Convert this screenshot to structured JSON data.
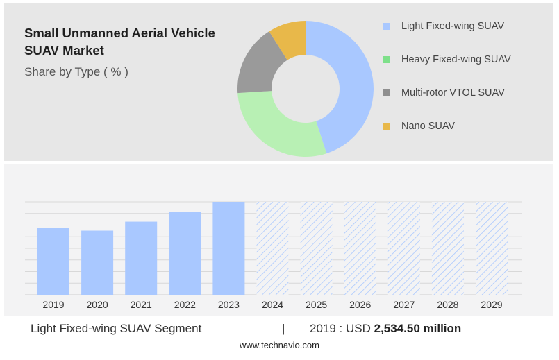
{
  "header": {
    "title": "Small Unmanned Aerial Vehicle SUAV Market",
    "subtitle": "Share by Type ( % )"
  },
  "colors": {
    "light_fixed_wing": "#a9c8ff",
    "heavy_fixed_wing": "#b8f0b4",
    "multi_rotor": "#9a9a9a",
    "nano": "#e8b84a",
    "bar_actual": "#a9c8ff",
    "bar_forecast_hatch": "#a9c8ff"
  },
  "chart_data": [
    {
      "type": "pie",
      "title": "",
      "donut": true,
      "categories": [
        "Light Fixed-wing SUAV",
        "Heavy Fixed-wing SUAV",
        "Multi-rotor VTOL SUAV",
        "Nano SUAV"
      ],
      "values": [
        45,
        29,
        17,
        9
      ],
      "legend_position": "right"
    },
    {
      "type": "bar",
      "title": "",
      "categories": [
        "2019",
        "2020",
        "2021",
        "2022",
        "2023",
        "2024",
        "2025",
        "2026",
        "2027",
        "2028",
        "2029"
      ],
      "values": [
        2534.5,
        2430,
        2770,
        3140,
        3520,
        3520,
        3520,
        3520,
        3520,
        3520,
        3520
      ],
      "forecast_from": "2024",
      "ylim": [
        0,
        3520
      ],
      "grid": true
    }
  ],
  "footer": {
    "segment": "Light Fixed-wing SUAV Segment",
    "separator": "|",
    "value_prefix": "2019 : USD",
    "value_bold": "2,534.50 million",
    "website": "www.technavio.com"
  }
}
